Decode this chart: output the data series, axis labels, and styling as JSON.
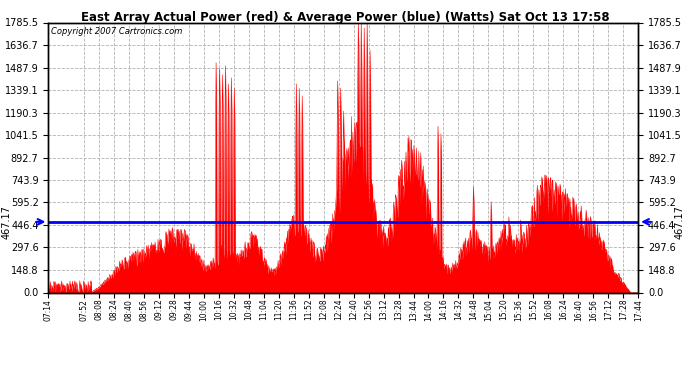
{
  "title": "East Array Actual Power (red) & Average Power (blue) (Watts) Sat Oct 13 17:58",
  "copyright": "Copyright 2007 Cartronics.com",
  "average_power": 467.17,
  "yticks": [
    0.0,
    148.8,
    297.6,
    446.4,
    595.2,
    743.9,
    892.7,
    1041.5,
    1190.3,
    1339.1,
    1487.9,
    1636.7,
    1785.5
  ],
  "ymax": 1785.5,
  "ymin": 0.0,
  "bg_color": "#ffffff",
  "fill_color": "#ff0000",
  "line_color": "#ff0000",
  "avg_line_color": "#0000ff",
  "title_color": "#000000",
  "copyright_color": "#000000",
  "grid_color": "#aaaaaa",
  "xtick_labels": [
    "07:14",
    "07:52",
    "08:08",
    "08:24",
    "08:40",
    "08:56",
    "09:12",
    "09:28",
    "09:44",
    "10:00",
    "10:16",
    "10:32",
    "10:48",
    "11:04",
    "11:20",
    "11:36",
    "11:52",
    "12:08",
    "12:24",
    "12:40",
    "12:56",
    "13:12",
    "13:28",
    "13:44",
    "14:00",
    "14:16",
    "14:32",
    "14:48",
    "15:04",
    "15:20",
    "15:36",
    "15:52",
    "16:08",
    "16:24",
    "16:40",
    "16:56",
    "17:12",
    "17:28",
    "17:44"
  ]
}
